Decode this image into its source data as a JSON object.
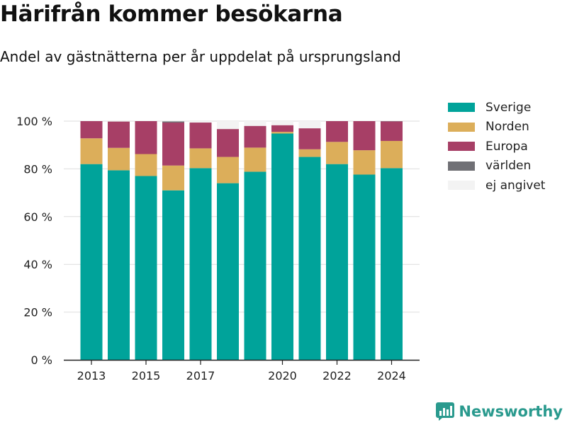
{
  "header": {
    "title": "Härifrån kommer besökarna",
    "subtitle": "Andel av gästnätterna per år uppdelat på ursprungsland"
  },
  "branding": {
    "name": "Newsworthy",
    "color": "#2a9a8e"
  },
  "chart_data": {
    "type": "bar",
    "stacked": true,
    "x": [
      2013,
      2014,
      2015,
      2016,
      2017,
      2018,
      2019,
      2020,
      2021,
      2022,
      2023,
      2024
    ],
    "x_ticks": [
      2013,
      2015,
      2017,
      2020,
      2022,
      2024
    ],
    "y_ticks": [
      0,
      20,
      40,
      60,
      80,
      100
    ],
    "y_tick_labels": [
      "0 %",
      "20 %",
      "40 %",
      "60 %",
      "80 %",
      "100 %"
    ],
    "ylim": [
      0,
      100
    ],
    "grid": true,
    "legend_position": "right",
    "series": [
      {
        "name": "Sverige",
        "color": "#00a39a",
        "values": [
          82,
          79.4,
          77,
          71,
          80.3,
          74,
          78.8,
          94.8,
          85,
          82,
          77.6,
          80.3
        ]
      },
      {
        "name": "Norden",
        "color": "#dcae5a",
        "values": [
          10.8,
          9.4,
          9.2,
          10.4,
          8.3,
          11,
          10.1,
          0.7,
          3.2,
          9.3,
          10.2,
          11.4
        ]
      },
      {
        "name": "Europa",
        "color": "#a73f66",
        "values": [
          7.2,
          11,
          13.8,
          18,
          10.8,
          11.7,
          9.1,
          2.8,
          8.8,
          8.7,
          12.2,
          8.2
        ]
      },
      {
        "name": "världen",
        "color": "#707075",
        "values": [
          0,
          0,
          0,
          0.5,
          0,
          0,
          0,
          0,
          0,
          0,
          0,
          0.1
        ]
      },
      {
        "name": "ej angivet",
        "color": "#f3f3f3",
        "values": [
          0,
          0,
          0,
          0.1,
          0.6,
          3.3,
          2,
          1.7,
          3,
          0,
          0,
          0
        ]
      }
    ]
  }
}
